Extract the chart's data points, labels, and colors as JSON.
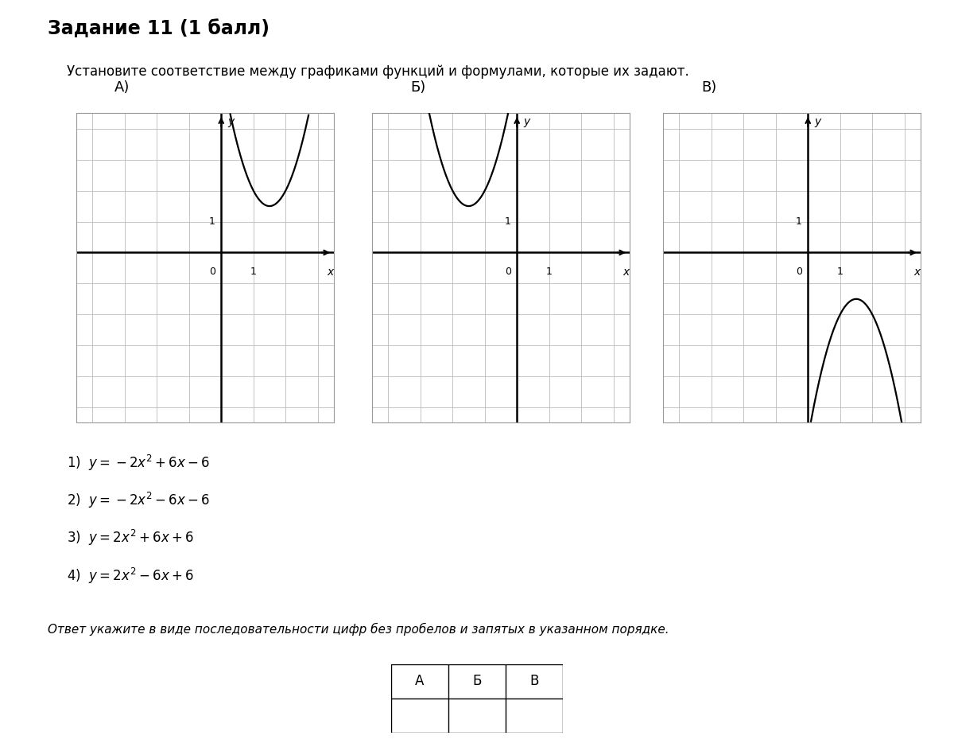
{
  "title": "Задание 11 (1 балл)",
  "subtitle": "Установите соответствие между графиками функций и формулами, которые их задают.",
  "graph_labels": [
    "А)",
    "Б)",
    "В)"
  ],
  "formula1": "1)  $y = -2x^2 + 6x - 6$",
  "formula2": "2)  $y = -2x^2 - 6x - 6$",
  "formula3": "3)  $y = 2x^2 + 6x + 6$",
  "formula4": "4)  $y = 2x^2 - 6x + 6$",
  "answer_prompt": "Ответ укажите в виде последовательности цифр без пробелов и запятых в указанном порядке.",
  "answer_cols": [
    "А",
    "Б",
    "В"
  ],
  "bg_color": "#ffffff",
  "grid_color": "#bbbbbb",
  "axis_color": "#000000",
  "curve_color": "#000000",
  "graphs": [
    {
      "a": 2,
      "b": -6,
      "c": 6
    },
    {
      "a": 2,
      "b": 6,
      "c": 6
    },
    {
      "a": -2,
      "b": 6,
      "c": -6
    }
  ],
  "xlim": [
    -5,
    5
  ],
  "ylim": [
    -5,
    5
  ],
  "grid_step": 1,
  "num_grid_cols": 8,
  "num_grid_rows": 10
}
